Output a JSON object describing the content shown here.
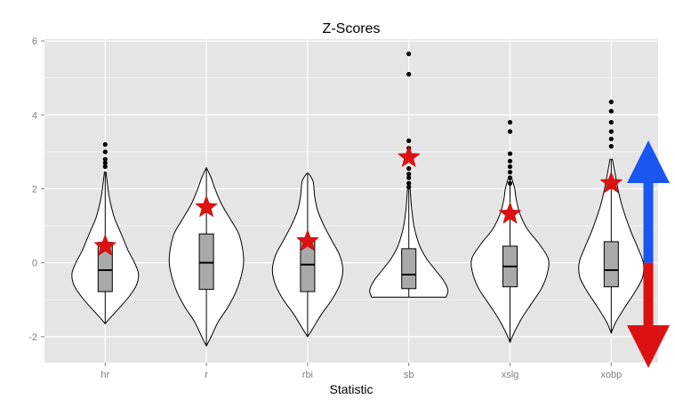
{
  "chart_data": {
    "type": "violin",
    "title": "Z-Scores",
    "xlabel": "Statistic",
    "ylabel": "",
    "ylim": [
      -2.7,
      6.05
    ],
    "yticks": [
      -2,
      0,
      2,
      4,
      6
    ],
    "ytick_labels": [
      "-2",
      "0",
      "2",
      "4",
      "6"
    ],
    "grid": true,
    "categories": [
      "hr",
      "r",
      "rbi",
      "sb",
      "xslg",
      "xobp"
    ],
    "series": [
      {
        "category": "hr",
        "violin_min": -1.65,
        "violin_max": 2.45,
        "profile": [
          [
            -1.65,
            0.0
          ],
          [
            -1.5,
            0.12
          ],
          [
            -1.2,
            0.38
          ],
          [
            -0.9,
            0.62
          ],
          [
            -0.6,
            0.8
          ],
          [
            -0.3,
            0.85
          ],
          [
            0.0,
            0.75
          ],
          [
            0.3,
            0.6
          ],
          [
            0.6,
            0.48
          ],
          [
            0.9,
            0.36
          ],
          [
            1.2,
            0.24
          ],
          [
            1.5,
            0.16
          ],
          [
            1.8,
            0.1
          ],
          [
            2.1,
            0.06
          ],
          [
            2.45,
            0.02
          ]
        ],
        "whisker_low": -1.65,
        "q1": -0.78,
        "median": -0.2,
        "q3": 0.55,
        "whisker_high": 2.45,
        "outliers": [
          2.6,
          2.7,
          2.8,
          3.0,
          3.2
        ],
        "highlight": 0.45
      },
      {
        "category": "r",
        "violin_min": -2.25,
        "violin_max": 2.57,
        "profile": [
          [
            -2.25,
            0.0
          ],
          [
            -2.0,
            0.12
          ],
          [
            -1.6,
            0.3
          ],
          [
            -1.2,
            0.55
          ],
          [
            -0.8,
            0.75
          ],
          [
            -0.4,
            0.88
          ],
          [
            0.0,
            0.95
          ],
          [
            0.4,
            0.92
          ],
          [
            0.8,
            0.82
          ],
          [
            1.2,
            0.6
          ],
          [
            1.6,
            0.38
          ],
          [
            2.0,
            0.22
          ],
          [
            2.3,
            0.12
          ],
          [
            2.57,
            0.0
          ]
        ],
        "whisker_low": -2.25,
        "q1": -0.72,
        "median": 0.0,
        "q3": 0.78,
        "whisker_high": 2.57,
        "outliers": [],
        "highlight": 1.5
      },
      {
        "category": "rbi",
        "violin_min": -2.0,
        "violin_max": 2.42,
        "profile": [
          [
            -2.0,
            0.0
          ],
          [
            -1.8,
            0.12
          ],
          [
            -1.4,
            0.35
          ],
          [
            -1.0,
            0.62
          ],
          [
            -0.6,
            0.82
          ],
          [
            -0.2,
            0.9
          ],
          [
            0.2,
            0.82
          ],
          [
            0.6,
            0.62
          ],
          [
            1.0,
            0.42
          ],
          [
            1.4,
            0.26
          ],
          [
            1.8,
            0.18
          ],
          [
            2.2,
            0.14
          ],
          [
            2.42,
            0.02
          ]
        ],
        "whisker_low": -2.0,
        "q1": -0.78,
        "median": -0.05,
        "q3": 0.62,
        "whisker_high": 2.42,
        "outliers": [],
        "highlight": 0.58
      },
      {
        "category": "sb",
        "violin_min": -0.93,
        "violin_max": 2.15,
        "profile": [
          [
            -0.93,
            0.95
          ],
          [
            -0.75,
            1.0
          ],
          [
            -0.5,
            0.9
          ],
          [
            -0.2,
            0.68
          ],
          [
            0.1,
            0.46
          ],
          [
            0.4,
            0.3
          ],
          [
            0.7,
            0.2
          ],
          [
            1.0,
            0.13
          ],
          [
            1.3,
            0.09
          ],
          [
            1.6,
            0.06
          ],
          [
            1.9,
            0.04
          ],
          [
            2.15,
            0.02
          ]
        ],
        "whisker_low": -0.93,
        "q1": -0.7,
        "median": -0.32,
        "q3": 0.38,
        "whisker_high": 2.15,
        "outliers": [
          2.05,
          2.15,
          2.3,
          2.4,
          2.55,
          2.8,
          3.1,
          3.3,
          5.1,
          5.65
        ],
        "highlight": 2.85
      },
      {
        "category": "xslg",
        "violin_min": -2.15,
        "violin_max": 2.3,
        "profile": [
          [
            -2.15,
            0.0
          ],
          [
            -1.9,
            0.1
          ],
          [
            -1.5,
            0.3
          ],
          [
            -1.1,
            0.55
          ],
          [
            -0.7,
            0.8
          ],
          [
            -0.3,
            0.95
          ],
          [
            0.1,
            0.98
          ],
          [
            0.5,
            0.75
          ],
          [
            0.9,
            0.45
          ],
          [
            1.3,
            0.26
          ],
          [
            1.7,
            0.16
          ],
          [
            2.0,
            0.12
          ],
          [
            2.3,
            0.04
          ]
        ],
        "whisker_low": -2.15,
        "q1": -0.65,
        "median": -0.1,
        "q3": 0.45,
        "whisker_high": 2.3,
        "outliers": [
          2.15,
          2.3,
          2.45,
          2.6,
          2.75,
          2.95,
          3.55,
          3.8
        ],
        "highlight": 1.32
      },
      {
        "category": "xobp",
        "violin_min": -1.9,
        "violin_max": 2.8,
        "profile": [
          [
            -1.9,
            0.0
          ],
          [
            -1.6,
            0.12
          ],
          [
            -1.2,
            0.35
          ],
          [
            -0.8,
            0.6
          ],
          [
            -0.4,
            0.8
          ],
          [
            0.0,
            0.82
          ],
          [
            0.4,
            0.68
          ],
          [
            0.8,
            0.52
          ],
          [
            1.2,
            0.38
          ],
          [
            1.6,
            0.26
          ],
          [
            2.0,
            0.17
          ],
          [
            2.4,
            0.1
          ],
          [
            2.8,
            0.03
          ]
        ],
        "whisker_low": -1.9,
        "q1": -0.65,
        "median": -0.2,
        "q3": 0.57,
        "whisker_high": 2.8,
        "outliers": [
          3.15,
          3.35,
          3.55,
          3.8,
          4.1,
          4.35
        ],
        "highlight": 2.15
      }
    ],
    "arrow_legend": {
      "pivot": 0,
      "up_color": "#1a56f0",
      "down_color": "#dd1111"
    },
    "colors": {
      "panel": "#e5e5e5",
      "grid": "#ffffff",
      "violin_fill": "#ffffff",
      "box_fill": "#a9a9a9",
      "star": "#dd1111",
      "outline": "#000000"
    }
  }
}
